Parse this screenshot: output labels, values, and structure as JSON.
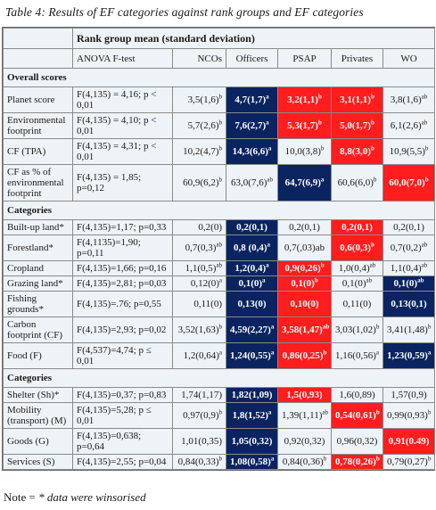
{
  "caption": "Table 4: Results of EF categories against rank groups and EF categories",
  "header": {
    "group_label": "Rank group mean (standard deviation)",
    "columns": [
      "ANOVA F-test",
      "NCOs",
      "Officers",
      "PSAP",
      "Privates",
      "WO"
    ]
  },
  "colors": {
    "navy": "#0a2461",
    "red": "#ff1d1d",
    "table_bg": "#eef3f7"
  },
  "sections": [
    {
      "title": "Overall scores",
      "rows": [
        {
          "label": "Planet score",
          "anova": "F(4,135) = 4,16; p < 0,01",
          "cells": [
            {
              "v": "3,5(1,6)",
              "s": "b",
              "h": ""
            },
            {
              "v": "4,7(1,7)",
              "s": "a",
              "h": "navy"
            },
            {
              "v": "3,2(1,1)",
              "s": "b",
              "h": "red"
            },
            {
              "v": "3,1(1,1)",
              "s": "b",
              "h": "red"
            },
            {
              "v": "3,8(1,6)",
              "s": "ab",
              "h": ""
            }
          ]
        },
        {
          "label": "Environmental footprint",
          "anova": "F(4,135) = 4,10; p < 0,01",
          "cells": [
            {
              "v": "5,7(2,6)",
              "s": "b",
              "h": ""
            },
            {
              "v": "7,6(2,7)",
              "s": "a",
              "h": "navy"
            },
            {
              "v": "5,3(1,7)",
              "s": "b",
              "h": "red"
            },
            {
              "v": "5,0(1,7)",
              "s": "b",
              "h": "red"
            },
            {
              "v": "6,1(2,6)",
              "s": "ab",
              "h": ""
            }
          ]
        },
        {
          "label": "CF (TPA)",
          "anova": "F(4,135) = 4,31; p < 0,01",
          "cells": [
            {
              "v": "10,2(4,7)",
              "s": "b",
              "h": ""
            },
            {
              "v": "14,3(6,6)",
              "s": "a",
              "h": "navy"
            },
            {
              "v": "10,0(3,8)",
              "s": "b",
              "h": ""
            },
            {
              "v": "8,8(3,0)",
              "s": "b",
              "h": "red"
            },
            {
              "v": "10,9(5,5)",
              "s": "b",
              "h": ""
            }
          ]
        },
        {
          "label": "CF as % of environmental footprint",
          "anova": "F(4,135) = 1,85; p=0,12",
          "cells": [
            {
              "v": "60,9(6,2)",
              "s": "b",
              "h": ""
            },
            {
              "v": "63,0(7,6)",
              "s": "ab",
              "h": ""
            },
            {
              "v": "64,7(6,9)",
              "s": "a",
              "h": "navy"
            },
            {
              "v": "60,6(6,0)",
              "s": "b",
              "h": ""
            },
            {
              "v": "60,0(7,0)",
              "s": "b",
              "h": "red"
            }
          ]
        }
      ]
    },
    {
      "title": "Categories",
      "rows": [
        {
          "label": "Built-up land*",
          "anova": "F(4,135)=1,17; p=0,33",
          "cells": [
            {
              "v": "0,2(0)",
              "s": "",
              "h": ""
            },
            {
              "v": "0,2(0,1)",
              "s": "",
              "h": "navy"
            },
            {
              "v": "0,2(0,1)",
              "s": "",
              "h": ""
            },
            {
              "v": "0,2(0,1)",
              "s": "",
              "h": "red"
            },
            {
              "v": "0,2(0,1)",
              "s": "",
              "h": ""
            }
          ]
        },
        {
          "label": "Forestland*",
          "anova": "F(4,1135)=1,90; p=0,11",
          "cells": [
            {
              "v": "0,7(0,3)",
              "s": "ab",
              "h": ""
            },
            {
              "v": "0,8 (0,4)",
              "s": "a",
              "h": "navy"
            },
            {
              "v": "0,7(,03)ab",
              "s": "",
              "h": ""
            },
            {
              "v": "0,6(0,3)",
              "s": "b",
              "h": "red"
            },
            {
              "v": "0,7(0,2)",
              "s": "ab",
              "h": ""
            }
          ]
        },
        {
          "label": "Cropland",
          "anova": "F(4,135)=1,66; p=0,16",
          "cells": [
            {
              "v": "1,1(0,5)",
              "s": "ab",
              "h": ""
            },
            {
              "v": "1,2(0,4)",
              "s": "a",
              "h": "navy"
            },
            {
              "v": "0,9(0,26)",
              "s": "b",
              "h": "red"
            },
            {
              "v": "1,0(0,4)",
              "s": "ab",
              "h": ""
            },
            {
              "v": "1,1(0,4)",
              "s": "ab",
              "h": ""
            }
          ]
        },
        {
          "label": "Grazing land*",
          "anova": "F(4,135)=2,81; p=0,03",
          "cells": [
            {
              "v": "0,12(0)",
              "s": "a",
              "h": ""
            },
            {
              "v": "0,1(0)",
              "s": "a",
              "h": "navy"
            },
            {
              "v": "0,1(0)",
              "s": "b",
              "h": "red"
            },
            {
              "v": "0,1(0)",
              "s": "ab",
              "h": ""
            },
            {
              "v": "0,1(0)",
              "s": "ab",
              "h": "navy"
            }
          ]
        },
        {
          "label": "Fishing grounds*",
          "anova": "F(4,135)=.76; p=0,55",
          "cells": [
            {
              "v": "0,11(0)",
              "s": "",
              "h": ""
            },
            {
              "v": "0,13(0)",
              "s": "",
              "h": "navy"
            },
            {
              "v": "0,10(0)",
              "s": "",
              "h": "red"
            },
            {
              "v": "0,11(0)",
              "s": "",
              "h": ""
            },
            {
              "v": "0,13(0,1)",
              "s": "",
              "h": "navy"
            }
          ]
        },
        {
          "label": "Carbon footprint (CF)",
          "anova": "F(4,135)=2,93; p=0,02",
          "cells": [
            {
              "v": "3,52(1,63)",
              "s": "b",
              "h": ""
            },
            {
              "v": "4,59(2,27)",
              "s": "a",
              "h": "navy"
            },
            {
              "v": "3,58(1,47)",
              "s": "ab",
              "h": "red"
            },
            {
              "v": "3,03(1,02)",
              "s": "b",
              "h": ""
            },
            {
              "v": "3,41(1,48)",
              "s": "b",
              "h": ""
            }
          ]
        },
        {
          "label": "Food (F)",
          "anova": "F(4,537)=4,74; p ≤ 0,01",
          "cells": [
            {
              "v": "1,2(0,64)",
              "s": "a",
              "h": ""
            },
            {
              "v": "1,24(0,55)",
              "s": "a",
              "h": "navy"
            },
            {
              "v": "0,86(0,25)",
              "s": "b",
              "h": "red"
            },
            {
              "v": "1,16(0,56)",
              "s": "a",
              "h": ""
            },
            {
              "v": "1,23(0,59)",
              "s": "a",
              "h": "navy"
            }
          ]
        }
      ]
    },
    {
      "title": "Categories",
      "rows": [
        {
          "label": "Shelter (Sh)*",
          "anova": "F(4,135)=0,37; p=0,83",
          "cells": [
            {
              "v": "1,74(1,17)",
              "s": "",
              "h": ""
            },
            {
              "v": "1,82(1,09)",
              "s": "",
              "h": "navy"
            },
            {
              "v": "1,5(0,93)",
              "s": "",
              "h": "red"
            },
            {
              "v": "1,6(0,89)",
              "s": "",
              "h": ""
            },
            {
              "v": "1,57(0,9)",
              "s": "",
              "h": ""
            }
          ]
        },
        {
          "label": "Mobility (transport) (M)",
          "anova": "F(4,135)=5,28; p ≤ 0,01",
          "cells": [
            {
              "v": "0,97(0,9)",
              "s": "b",
              "h": ""
            },
            {
              "v": "1,8(1,52)",
              "s": "a",
              "h": "navy"
            },
            {
              "v": "1,39(1,11)",
              "s": "ab",
              "h": ""
            },
            {
              "v": "0,54(0,61)",
              "s": "b",
              "h": "red"
            },
            {
              "v": "0,99(0,93)",
              "s": "b",
              "h": ""
            }
          ]
        },
        {
          "label": "Goods (G)",
          "anova": "F(4,135)=0,638; p=0,64",
          "cells": [
            {
              "v": "1,01(0,35)",
              "s": "",
              "h": ""
            },
            {
              "v": "1,05(0,32)",
              "s": "",
              "h": "navy"
            },
            {
              "v": "0,92(0,32)",
              "s": "",
              "h": ""
            },
            {
              "v": "0,96(0,32)",
              "s": "",
              "h": ""
            },
            {
              "v": "0,91(0.49)",
              "s": "",
              "h": "red"
            }
          ]
        },
        {
          "label": "Services (S)",
          "anova": "F(4,135)=2,55; p=0,04",
          "cells": [
            {
              "v": "0,84(0,33)",
              "s": "b",
              "h": ""
            },
            {
              "v": "1,08(0,58)",
              "s": "a",
              "h": "navy"
            },
            {
              "v": "0,84(0,36)",
              "s": "b",
              "h": ""
            },
            {
              "v": "0,78(0,26)",
              "s": "b",
              "h": "red"
            },
            {
              "v": "0,79(0,27)",
              "s": "b",
              "h": ""
            }
          ]
        }
      ]
    }
  ],
  "note": {
    "prefix": "Note = ",
    "text": "* data were winsorised"
  }
}
